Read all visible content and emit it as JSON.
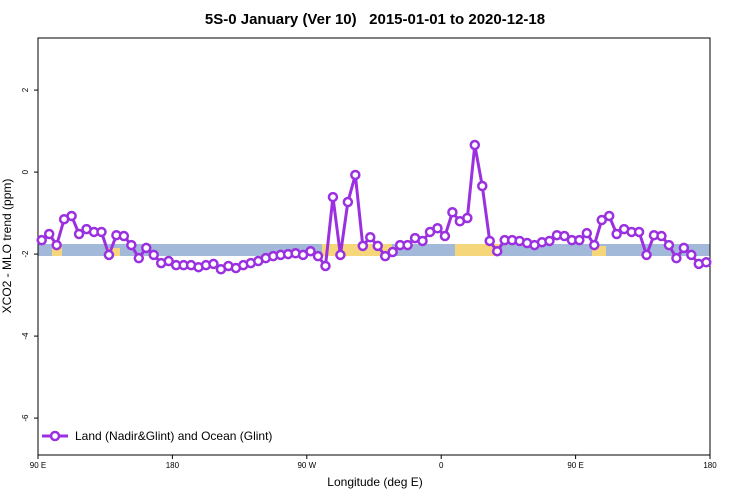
{
  "chart_data": {
    "type": "line",
    "title": "5S-0 January (Ver 10)   2015-01-01 to 2020-12-18",
    "x_label": "Longitude (deg E)",
    "y_label": "XCO2 - MLO trend (ppm)",
    "xlim": [
      90,
      540
    ],
    "xticks": [
      {
        "value": 90,
        "label": "90 E"
      },
      180,
      {
        "value": 270,
        "label": "90 W"
      },
      {
        "value": 360,
        "label": "0"
      },
      {
        "value": 450,
        "label": "90 E"
      },
      {
        "value": 540,
        "label": "180"
      }
    ],
    "ylim": [
      -6.9,
      3.27
    ],
    "yticks": [
      -6,
      -4,
      -2,
      0,
      2
    ],
    "x": [
      92.5,
      97.5,
      102.5,
      107.5,
      112.5,
      117.5,
      122.5,
      127.5,
      132.5,
      137.5,
      142.5,
      147.5,
      152.5,
      157.5,
      162.5,
      167.5,
      172.5,
      177.5,
      182.5,
      187.5,
      192.5,
      197.5,
      202.5,
      207.5,
      212.5,
      217.5,
      222.5,
      227.5,
      232.5,
      237.5,
      242.5,
      247.5,
      252.5,
      257.5,
      262.5,
      267.5,
      272.5,
      277.5,
      282.5,
      287.5,
      292.5,
      297.5,
      302.5,
      307.5,
      312.5,
      317.5,
      322.5,
      327.5,
      332.5,
      337.5,
      342.5,
      347.5,
      352.5,
      357.5,
      362.5,
      367.5,
      372.5,
      377.5,
      382.5,
      387.5,
      392.5,
      397.5,
      402.5,
      407.5,
      412.5,
      417.5,
      422.5,
      427.5,
      432.5,
      437.5,
      442.5,
      447.5,
      452.5,
      457.5,
      462.5,
      467.5,
      472.5,
      477.5,
      482.5,
      487.5,
      492.5,
      497.5,
      502.5,
      507.5,
      512.5,
      517.5,
      522.5,
      527.5,
      532.5,
      537.5
    ],
    "series": [
      {
        "name": "Land (Nadir&Glint) and Ocean (Glint)",
        "color": "#9b30e0",
        "values": [
          -1.66,
          -1.51,
          -1.78,
          -1.15,
          -1.07,
          -1.51,
          -1.39,
          -1.46,
          -1.46,
          -2.02,
          -1.54,
          -1.56,
          -1.78,
          -2.1,
          -1.85,
          -2.02,
          -2.22,
          -2.17,
          -2.27,
          -2.27,
          -2.27,
          -2.32,
          -2.27,
          -2.24,
          -2.37,
          -2.29,
          -2.34,
          -2.27,
          -2.22,
          -2.17,
          -2.1,
          -2.05,
          -2.02,
          -2.0,
          -1.98,
          -2.02,
          -1.93,
          -2.05,
          -2.29,
          -0.61,
          -2.02,
          -0.73,
          -0.07,
          -1.8,
          -1.59,
          -1.8,
          -2.05,
          -1.95,
          -1.78,
          -1.78,
          -1.61,
          -1.68,
          -1.46,
          -1.37,
          -1.56,
          -0.98,
          -1.2,
          -1.12,
          0.66,
          -0.34,
          -1.68,
          -1.93,
          -1.66,
          -1.66,
          -1.68,
          -1.73,
          -1.78,
          -1.71,
          -1.68,
          -1.54,
          -1.56,
          -1.66,
          -1.66,
          -1.49,
          -1.78,
          -1.17,
          -1.07,
          -1.51,
          -1.39,
          -1.46,
          -1.46,
          -2.02,
          -1.54,
          -1.56,
          -1.78,
          -2.1,
          -1.85,
          -2.02,
          -2.24,
          -2.2
        ]
      }
    ]
  }
}
